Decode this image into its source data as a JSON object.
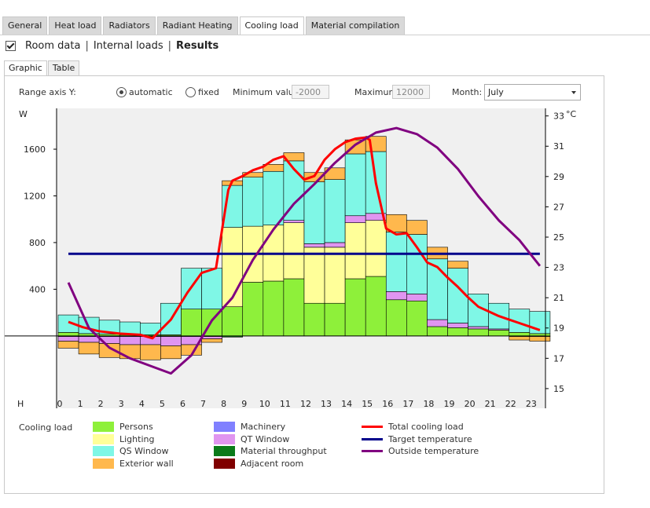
{
  "tabs": [
    {
      "label": "General",
      "active": false
    },
    {
      "label": "Heat load",
      "active": false
    },
    {
      "label": "Radiators",
      "active": false
    },
    {
      "label": "Radiant Heating",
      "active": false
    },
    {
      "label": "Cooling load",
      "active": true
    },
    {
      "label": "Material compilation",
      "active": false
    }
  ],
  "subnav": {
    "room_data": "Room data",
    "internal_loads": "Internal loads",
    "results": "Results",
    "sep": "|"
  },
  "inner_tabs": [
    {
      "label": "Graphic",
      "active": true
    },
    {
      "label": "Table",
      "active": false
    }
  ],
  "controls": {
    "range_label": "Range axis Y:",
    "automatic_label": "automatic",
    "fixed_label": "fixed",
    "min_label": "Minimum value:",
    "min_value": "-2000",
    "max_label": "Maximum",
    "max_value": "12000",
    "month_label": "Month:",
    "month_value": "July"
  },
  "legend": {
    "title": "Cooling load",
    "persons": "Persons",
    "lighting": "Lighting",
    "qs_window": "QS Window",
    "exterior_wall": "Exterior wall",
    "machinery": "Machinery",
    "qt_window": "QT Window",
    "material_throughput": "Material throughput",
    "adjacent_room": "Adjacent room",
    "total_cooling_load": "Total cooling load",
    "target_temperature": "Target temperature",
    "outside_temperature": "Outside temperature"
  },
  "colors": {
    "persons": "#8ef03a",
    "lighting": "#ffff99",
    "qs_window": "#7ff7e6",
    "exterior_wall": "#ffb84d",
    "machinery": "#8080ff",
    "qt_window": "#e095f0",
    "material_throughput": "#0a7a1a",
    "adjacent_room": "#800000",
    "total_cooling_load": "#ff0000",
    "target_temperature": "#00008b",
    "outside_temperature": "#800080"
  },
  "chart_data": {
    "type": "bar",
    "y_left_label": "W",
    "y_right_label": "°C",
    "x_label": "H",
    "y_left_ticks": [
      "400",
      "800",
      "1200",
      "1600"
    ],
    "y_left_range": [
      -620,
      1950
    ],
    "y_right_ticks": [
      "15",
      "17",
      "19",
      "21",
      "23",
      "25",
      "27",
      "29",
      "31",
      "33"
    ],
    "y_right_range": [
      13.7,
      33.5
    ],
    "hours": [
      "0",
      "1",
      "2",
      "3",
      "4",
      "5",
      "6",
      "7",
      "8",
      "9",
      "10",
      "11",
      "12",
      "13",
      "14",
      "15",
      "16",
      "17",
      "18",
      "19",
      "20",
      "21",
      "22",
      "23"
    ],
    "stacks": {
      "persons": [
        30,
        20,
        15,
        10,
        10,
        10,
        230,
        230,
        250,
        460,
        470,
        490,
        280,
        280,
        490,
        510,
        310,
        300,
        80,
        70,
        60,
        50,
        30,
        20
      ],
      "lighting": [
        0,
        0,
        0,
        0,
        0,
        0,
        0,
        0,
        680,
        480,
        480,
        480,
        480,
        480,
        480,
        480,
        0,
        0,
        0,
        0,
        0,
        0,
        0,
        0
      ],
      "qt_window": [
        0,
        0,
        0,
        0,
        0,
        0,
        0,
        0,
        0,
        0,
        0,
        20,
        30,
        40,
        60,
        60,
        70,
        60,
        60,
        40,
        20,
        10,
        0,
        0
      ],
      "qs_window": [
        150,
        140,
        120,
        110,
        100,
        270,
        350,
        350,
        360,
        420,
        460,
        510,
        530,
        540,
        530,
        530,
        510,
        510,
        520,
        470,
        280,
        220,
        200,
        190
      ],
      "exterior_wall": [
        0,
        0,
        0,
        0,
        0,
        0,
        0,
        0,
        40,
        40,
        60,
        70,
        80,
        100,
        120,
        130,
        150,
        120,
        100,
        60,
        0,
        0,
        0,
        0
      ],
      "negative_wall": [
        -60,
        -100,
        -120,
        -120,
        -130,
        -110,
        -90,
        -30,
        0,
        0,
        0,
        0,
        0,
        0,
        0,
        0,
        0,
        0,
        0,
        0,
        0,
        0,
        -30,
        -40
      ],
      "negative_qt": [
        -40,
        -50,
        -60,
        -70,
        -70,
        -80,
        -70,
        -20,
        0,
        0,
        0,
        0,
        0,
        0,
        0,
        0,
        0,
        0,
        0,
        0,
        0,
        0,
        0,
        0
      ],
      "negative_mt": [
        -5,
        -5,
        -5,
        -5,
        -5,
        -5,
        -5,
        -5,
        -10,
        0,
        0,
        0,
        0,
        0,
        0,
        0,
        0,
        0,
        0,
        0,
        0,
        0,
        -5,
        -5
      ]
    },
    "series": [
      {
        "name": "Total cooling load",
        "unit": "W",
        "x": [
          0.5,
          1.2,
          2,
          3,
          4,
          4.6,
          5.5,
          6.3,
          7,
          7.7,
          8.3,
          8.5,
          9,
          9.5,
          10,
          10.5,
          11,
          11.5,
          12,
          12.5,
          13,
          13.5,
          14,
          14.5,
          15,
          15.2,
          15.5,
          16,
          16.5,
          17,
          17.5,
          18,
          18.5,
          19,
          19.5,
          20,
          20.5,
          21,
          21.5,
          22,
          22.5,
          23,
          23.5
        ],
        "y": [
          120,
          75,
          40,
          20,
          10,
          -20,
          140,
          370,
          540,
          580,
          1250,
          1330,
          1370,
          1420,
          1450,
          1510,
          1540,
          1430,
          1340,
          1370,
          1510,
          1600,
          1660,
          1690,
          1700,
          1680,
          1310,
          920,
          870,
          880,
          760,
          630,
          590,
          500,
          420,
          330,
          250,
          210,
          170,
          140,
          110,
          80,
          50
        ]
      },
      {
        "name": "Target temperature",
        "unit": "°C",
        "x": [
          0.5,
          23.5
        ],
        "y": [
          23.9,
          23.9
        ]
      },
      {
        "name": "Outside temperature",
        "unit": "°C",
        "x": [
          0.5,
          1.5,
          2.5,
          3.5,
          4.5,
          5.5,
          6.5,
          7.5,
          8.5,
          9.5,
          10.5,
          11.5,
          12.5,
          13.5,
          14.5,
          15.5,
          16.5,
          17.5,
          18.5,
          19.5,
          20.5,
          21.5,
          22.5,
          23.5
        ],
        "y": [
          22,
          19,
          17.7,
          17,
          16.5,
          16,
          17.2,
          19.5,
          21,
          23.5,
          25.5,
          27.2,
          28.5,
          29.9,
          31.1,
          31.9,
          32.2,
          31.8,
          30.9,
          29.5,
          27.7,
          26.1,
          24.8,
          23.1
        ]
      }
    ]
  }
}
